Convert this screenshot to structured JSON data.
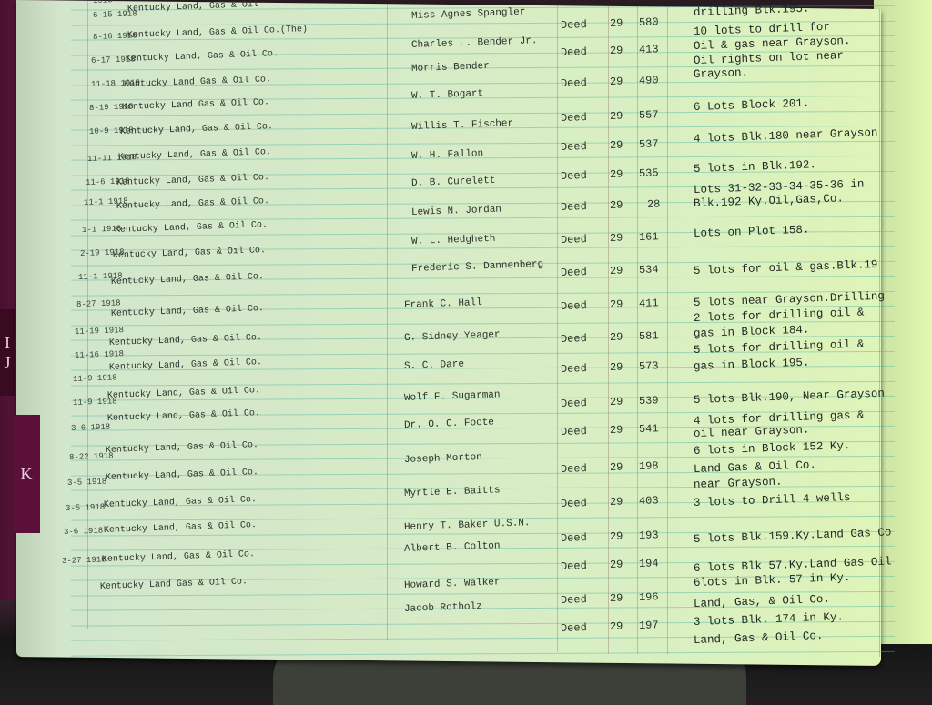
{
  "index_tabs": [
    "I",
    "J",
    "K"
  ],
  "ledger": {
    "dates": [
      "1918",
      "6-15 1918",
      "8-16 1918",
      "6-17 1918",
      "11-18 1919",
      "8-19 1918",
      "10-9 1918",
      "11-11 1918",
      "11-6 1918",
      "11-1 1918",
      "1-1 1918",
      "2-19 1918",
      "11-1 1918",
      "8-27 1918",
      "11-19 1918",
      "11-16 1918",
      "11-9 1918",
      "11-9 1918",
      "3-6 1918",
      "8-22 1918",
      "3-5 1918",
      "3-5 1918",
      "3-6 1918",
      "3-27 1918"
    ],
    "grantors": [
      "Kentucky Land, Gas & Oil",
      "Kentucky Land, Gas & Oil Co.(The)",
      "Kentucky Land, Gas & Oil Co.",
      "Kentucky Land Gas & Oil Co.",
      "Kentucky Land Gas & Oil Co.",
      "Kentucky Land, Gas & Oil Co.",
      "Kentucky Land, Gas & Oil Co.",
      "Kentucky Land, Gas & Oil Co.",
      "Kentucky Land, Gas & Oil Co.",
      "Kentucky Land, Gas & Oil Co.",
      "Kentucky Land, Gas & Oil Co.",
      "Kentucky Land, Gas & Oil Co.",
      "Kentucky Land, Gas & Oil Co.",
      "Kentucky Land, Gas & Oil Co.",
      "Kentucky Land, Gas & Oil Co.",
      "Kentucky Land, Gas & Oil Co.",
      "Kentucky Land, Gas & Oil Co.",
      "Kentucky Land, Gas & Oil Co.",
      "Kentucky Land, Gas & Oil Co.",
      "Kentucky Land, Gas & Oil Co.",
      "Kentucky Land, Gas & Oil Co.",
      "Kentucky Land, Gas & Oil Co.",
      "Kentucky Land Gas & Oil Co."
    ],
    "grantees": [
      "Miss Agnes Spangler",
      "Charles L. Bender Jr.",
      "Morris Bender",
      "W. T. Bogart",
      "Willis T. Fischer",
      "W. H. Fallon",
      "D. B. Curelett",
      "Lewis N. Jordan",
      "W. L. Hedgheth",
      "Frederic S. Dannenberg",
      "Frank C. Hall",
      "G. Sidney Yeager",
      "S. C. Dare",
      "Wolf F. Sugarman",
      "Dr. O. C. Foote",
      "Joseph Morton",
      "Myrtle E. Baitts",
      "Henry T. Baker U.S.N.",
      "Albert B. Colton",
      "Howard S. Walker",
      "Jacob Rotholz"
    ],
    "records": [
      {
        "type": "Deed",
        "book": "29",
        "page": "580"
      },
      {
        "type": "Deed",
        "book": "29",
        "page": "413"
      },
      {
        "type": "Deed",
        "book": "29",
        "page": "490"
      },
      {
        "type": "Deed",
        "book": "29",
        "page": "557"
      },
      {
        "type": "Deed",
        "book": "29",
        "page": "537"
      },
      {
        "type": "Deed",
        "book": "29",
        "page": "535"
      },
      {
        "type": "Deed",
        "book": "29",
        "page": "28"
      },
      {
        "type": "Deed",
        "book": "29",
        "page": "161"
      },
      {
        "type": "Deed",
        "book": "29",
        "page": "534"
      },
      {
        "type": "Deed",
        "book": "29",
        "page": "411"
      },
      {
        "type": "Deed",
        "book": "29",
        "page": "581"
      },
      {
        "type": "Deed",
        "book": "29",
        "page": "573"
      },
      {
        "type": "Deed",
        "book": "29",
        "page": "539"
      },
      {
        "type": "Deed",
        "book": "29",
        "page": "541"
      },
      {
        "type": "Deed",
        "book": "29",
        "page": "198"
      },
      {
        "type": "Deed",
        "book": "29",
        "page": "403"
      },
      {
        "type": "Deed",
        "book": "29",
        "page": "193"
      },
      {
        "type": "Deed",
        "book": "29",
        "page": "194"
      },
      {
        "type": "Deed",
        "book": "29",
        "page": "196"
      },
      {
        "type": "Deed",
        "book": "29",
        "page": "197"
      }
    ],
    "descriptions": [
      "drilling Blk.195.",
      "10 lots to drill for",
      "Oil & gas near Grayson.",
      "Oil rights on lot near",
      "Grayson.",
      "6 Lots Block 201.",
      "4 lots Blk.180 near Grayson",
      "5 lots in Blk.192.",
      "Lots 31-32-33-34-35-36 in",
      "Blk.192 Ky.Oil,Gas,Co.",
      "Lots on Plot 158.",
      "5 lots for oil & gas.Blk.19",
      "5 lots near Grayson.Drilling",
      "2 lots for drilling oil &",
      "gas in Block 184.",
      "5 lots for drilling oil &",
      "gas in Block 195.",
      "5 lots Blk.190, Near Grayson",
      "4 lots for drilling gas &",
      "oil near Grayson.",
      "6 lots in Block 152 Ky.",
      "Land Gas & Oil Co.",
      "near Grayson.",
      "3 lots to Drill 4 wells",
      "5 lots Blk.159.Ky.Land Gas Co",
      "6 lots Blk 57.Ky.Land Gas Oil",
      "6lots in Blk. 57 in Ky.",
      "Land, Gas, & Oil Co.",
      "3 lots Blk. 174 in Ky.",
      "Land, Gas & Oil Co."
    ]
  }
}
